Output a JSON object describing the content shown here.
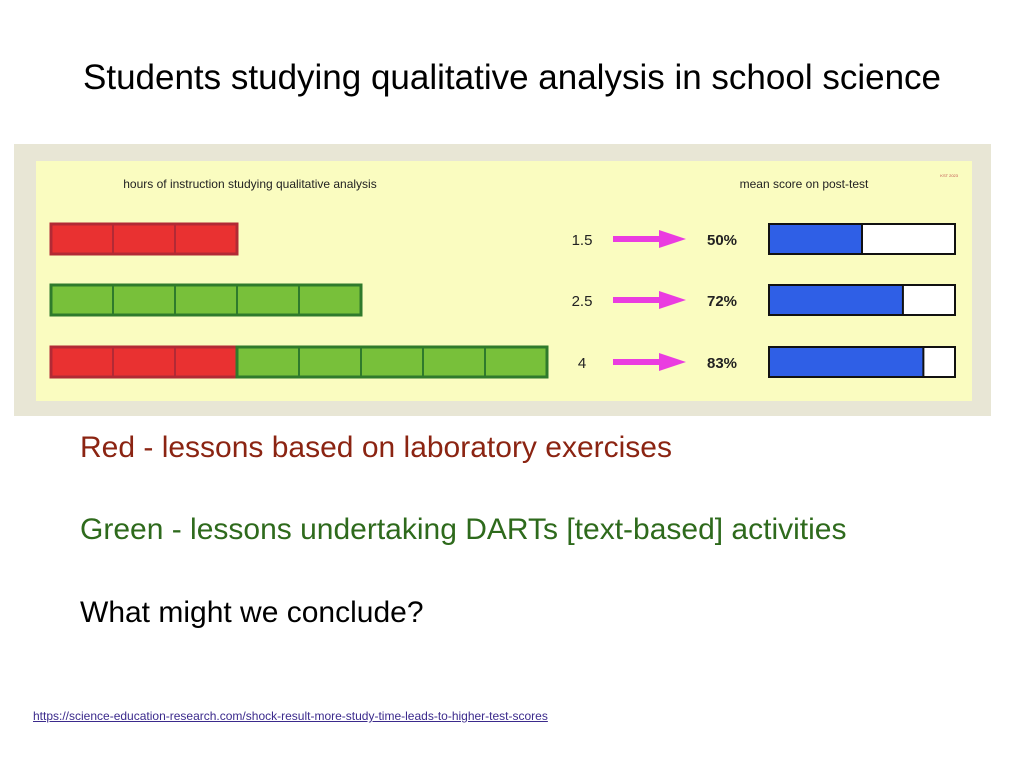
{
  "slide": {
    "title": "Students studying qualitative analysis in school science",
    "legend_red": "Red - lessons based on laboratory exercises",
    "legend_green": "Green - lessons undertaking DARTs [text-based] activities",
    "question": "What might we conclude?",
    "source_url": "https://science-education-research.com/shock-result-more-study-time-leads-to-higher-test-scores"
  },
  "chart_data": {
    "type": "bar",
    "left_header": "hours of instruction studying qualitative analysis",
    "right_header": "mean score on post-test",
    "corner_mark": "KST 2023",
    "rows": [
      {
        "hours": 1.5,
        "hours_label": "1.5",
        "red_units": 3,
        "green_units": 0,
        "score": 50,
        "score_label": "50%"
      },
      {
        "hours": 2.5,
        "hours_label": "2.5",
        "red_units": 0,
        "green_units": 5,
        "score": 72,
        "score_label": "72%"
      },
      {
        "hours": 4,
        "hours_label": "4",
        "red_units": 3,
        "green_units": 5,
        "score": 83,
        "score_label": "83%"
      }
    ],
    "score_range": [
      0,
      100
    ],
    "colors": {
      "panel": "#fafcc0",
      "red": "#e93131",
      "red_border": "#b22a35",
      "green": "#78c03a",
      "green_border": "#2f7a2c",
      "arrow": "#ea3ce0",
      "score_fill": "#2f5fe6",
      "score_border": "#111111"
    }
  }
}
